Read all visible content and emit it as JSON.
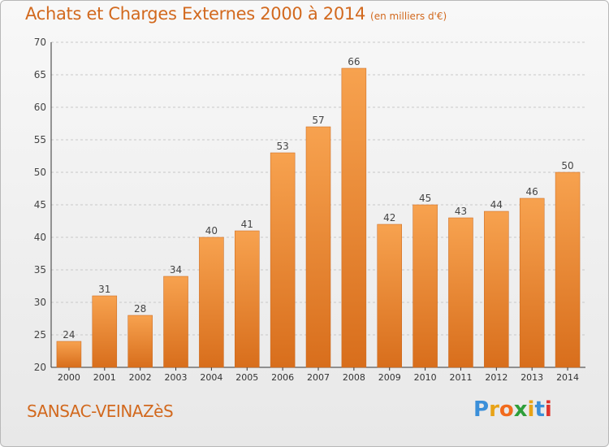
{
  "title": "Achats et Charges Externes 2000 à 2014",
  "subtitle": "(en milliers d'€)",
  "location": "SANSAC-VEINAZèS",
  "logo_text": "Proxiti",
  "colors": {
    "accent": "#d2691e",
    "bar_light": "#f7a24f",
    "bar_dark": "#d86e1c",
    "grid": "#c8c8c8"
  },
  "chart_data": {
    "type": "bar",
    "title": "Achats et Charges Externes 2000 à 2014",
    "subtitle": "(en milliers d'€)",
    "xlabel": "",
    "ylabel": "",
    "ylim": [
      20,
      70
    ],
    "yticks": [
      20,
      25,
      30,
      35,
      40,
      45,
      50,
      55,
      60,
      65,
      70
    ],
    "grid": true,
    "categories": [
      "2000",
      "2001",
      "2002",
      "2003",
      "2004",
      "2005",
      "2006",
      "2007",
      "2008",
      "2009",
      "2010",
      "2011",
      "2012",
      "2013",
      "2014"
    ],
    "values": [
      24,
      31,
      28,
      34,
      40,
      41,
      53,
      57,
      66,
      42,
      45,
      43,
      44,
      46,
      50
    ]
  }
}
